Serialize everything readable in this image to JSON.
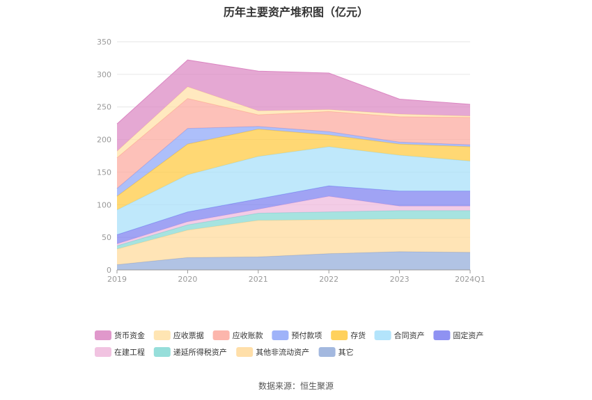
{
  "title": "历年主要资产堆积图（亿元）",
  "source": "数据来源：恒生聚源",
  "chart_data": {
    "type": "area",
    "stacked": true,
    "title": "历年主要资产堆积图（亿元）",
    "x": [
      "2019",
      "2020",
      "2021",
      "2022",
      "2023",
      "2024Q1"
    ],
    "ylim": [
      0,
      350
    ],
    "yticks": [
      0,
      50,
      100,
      150,
      200,
      250,
      300,
      350
    ],
    "grid": true,
    "legend_position": "bottom",
    "series": [
      {
        "name": "其它",
        "color": "#93acd9",
        "values": [
          8,
          19,
          20,
          25,
          28,
          27
        ]
      },
      {
        "name": "其他非流动资产",
        "color": "#ffd99a",
        "values": [
          24,
          42,
          56,
          52,
          50,
          51
        ]
      },
      {
        "name": "递延所得税资产",
        "color": "#84d8d4",
        "values": [
          5,
          8,
          11,
          12,
          13,
          13
        ]
      },
      {
        "name": "在建工程",
        "color": "#eeb9dc",
        "values": [
          3,
          5,
          6,
          24,
          7,
          7
        ]
      },
      {
        "name": "固定资产",
        "color": "#7b7ff0",
        "values": [
          14,
          15,
          16,
          16,
          23,
          23
        ]
      },
      {
        "name": "合同资产",
        "color": "#a6dffa",
        "values": [
          38,
          57,
          65,
          60,
          55,
          46
        ]
      },
      {
        "name": "存货",
        "color": "#ffc93f",
        "values": [
          21,
          47,
          42,
          18,
          17,
          22
        ]
      },
      {
        "name": "预付款项",
        "color": "#8ea6f8",
        "values": [
          12,
          24,
          4,
          5,
          3,
          3
        ]
      },
      {
        "name": "应收账款",
        "color": "#fca99e",
        "values": [
          47,
          46,
          18,
          31,
          39,
          42
        ]
      },
      {
        "name": "应收票据",
        "color": "#ffe0a6",
        "values": [
          10,
          18,
          6,
          3,
          4,
          2
        ]
      },
      {
        "name": "货币资金",
        "color": "#db86c2",
        "values": [
          42,
          41,
          61,
          56,
          23,
          18
        ]
      }
    ],
    "legend_order": [
      "货币资金",
      "应收票据",
      "应收账款",
      "预付款项",
      "存货",
      "合同资产",
      "固定资产",
      "在建工程",
      "递延所得税资产",
      "其他非流动资产",
      "其它"
    ]
  }
}
